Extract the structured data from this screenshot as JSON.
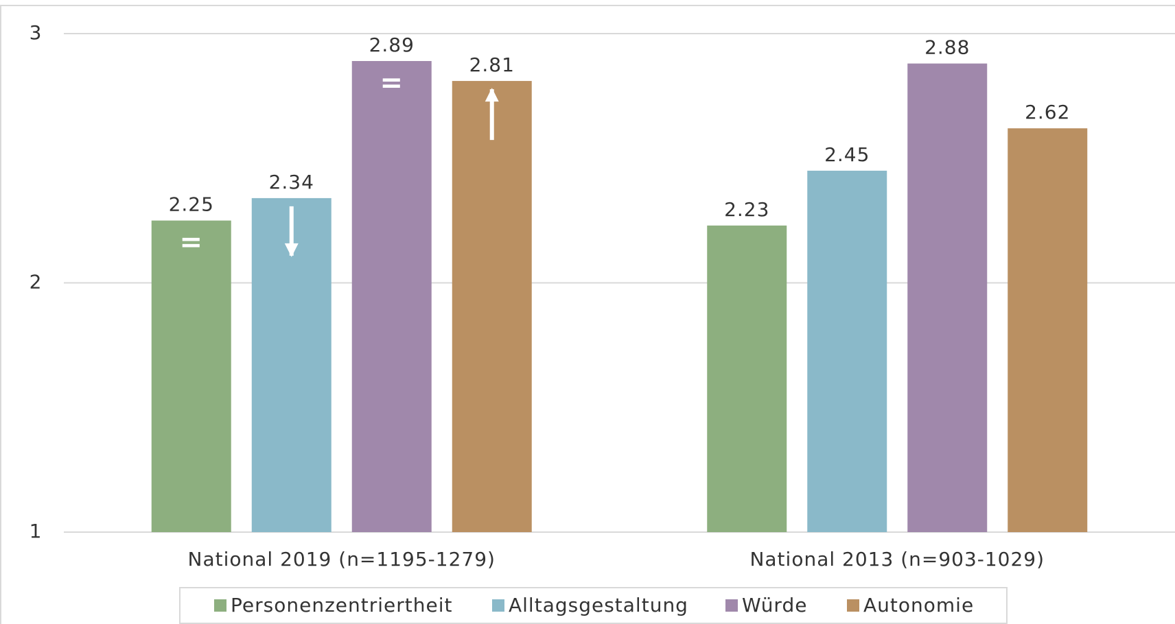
{
  "chart_data": {
    "type": "bar",
    "categories": [
      "National 2019 (n=1195-1279)",
      "National 2013 (n=903-1029)"
    ],
    "series": [
      {
        "name": "Personenzentriertheit",
        "color": "#8daf7f",
        "values": [
          2.25,
          2.23
        ]
      },
      {
        "name": "Alltagsgestaltung",
        "color": "#8ab9c9",
        "values": [
          2.34,
          2.45
        ]
      },
      {
        "name": "Würde",
        "color": "#a088ab",
        "values": [
          2.89,
          2.88
        ]
      },
      {
        "name": "Autonomie",
        "color": "#ba9062",
        "values": [
          2.81,
          2.62
        ]
      }
    ],
    "annotations": [
      {
        "text": "="
      },
      {
        "text": "="
      }
    ],
    "ylim": [
      1,
      3
    ],
    "yticks": [
      1,
      2,
      3
    ],
    "grid": true,
    "legend": "bottom"
  }
}
